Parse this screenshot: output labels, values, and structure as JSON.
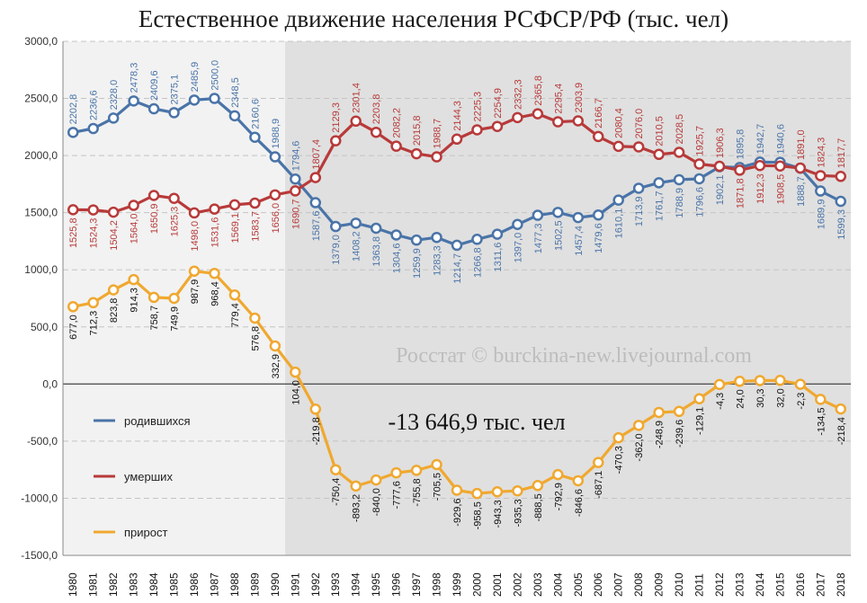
{
  "chart_data": {
    "type": "line",
    "title": "Естественное движение населения РСФСР/РФ (тыс. чел)",
    "x": [
      "1980",
      "1981",
      "1982",
      "1983",
      "1984",
      "1985",
      "1986",
      "1987",
      "1988",
      "1989",
      "1990",
      "1991",
      "1992",
      "1993",
      "1994",
      "1995",
      "1996",
      "1997",
      "1998",
      "1999",
      "2000",
      "2001",
      "2002",
      "2003",
      "2004",
      "2005",
      "2006",
      "2007",
      "2008",
      "2009",
      "2010",
      "2011",
      "2012",
      "2013",
      "2014",
      "2015",
      "2016",
      "2017",
      "2018"
    ],
    "y_ticks": [
      "3000,0",
      "2500,0",
      "2000,0",
      "1500,0",
      "1000,0",
      "500,0",
      "0,0",
      "-500,0",
      "-1000,0",
      "-1500,0"
    ],
    "ylim": [
      -1500,
      3000
    ],
    "grid": true,
    "shaded_from": "1991",
    "legend_position": "left",
    "series": [
      {
        "name": "родившихся",
        "color": "#4a74a8",
        "values": [
          2202.8,
          2236.6,
          2328.0,
          2478.3,
          2409.6,
          2375.1,
          2485.9,
          2500.0,
          2348.5,
          2160.6,
          1988.9,
          1794.6,
          1587.6,
          1379.0,
          1408.2,
          1363.8,
          1304.6,
          1259.9,
          1283.3,
          1214.7,
          1266.8,
          1311.6,
          1397.0,
          1477.3,
          1502.5,
          1457.4,
          1479.6,
          1610.1,
          1713.9,
          1761.7,
          1788.9,
          1796.6,
          1902.1,
          1895.8,
          1942.7,
          1940.6,
          1888.7,
          1689.9,
          1599.3
        ],
        "labels": [
          "2202,8",
          "2236,6",
          "2328,0",
          "2478,3",
          "2409,6",
          "2375,1",
          "2485,9",
          "2500,0",
          "2348,5",
          "2160,6",
          "1988,9",
          "1794,6",
          "1587,6",
          "1379,0",
          "1408,2",
          "1363,8",
          "1304,6",
          "1259,9",
          "1283,3",
          "1214,7",
          "1266,8",
          "1311,6",
          "1397,0",
          "1477,3",
          "1502,5",
          "1457,4",
          "1479,6",
          "1610,1",
          "1713,9",
          "1761,7",
          "1788,9",
          "1796,6",
          "1902,1",
          "1895,8",
          "1942,7",
          "1940,6",
          "1888,7",
          "1689,9",
          "1599,3"
        ]
      },
      {
        "name": "умерших",
        "color": "#b83a3a",
        "values": [
          1525.8,
          1524.3,
          1504.2,
          1564.0,
          1650.9,
          1625.3,
          1498.0,
          1531.6,
          1569.1,
          1583.7,
          1656.0,
          1690.7,
          1807.4,
          2129.3,
          2301.4,
          2203.8,
          2082.2,
          2015.8,
          1988.7,
          2144.3,
          2225.3,
          2254.9,
          2332.3,
          2365.8,
          2295.4,
          2303.9,
          2166.7,
          2080.4,
          2076.0,
          2010.5,
          2028.5,
          1925.7,
          1906.3,
          1871.8,
          1912.3,
          1908.5,
          1891.0,
          1824.3,
          1817.7
        ],
        "labels": [
          "1525,8",
          "1524,3",
          "1504,2",
          "1564,0",
          "1650,9",
          "1625,3",
          "1498,0",
          "1531,6",
          "1569,1",
          "1583,7",
          "1656,0",
          "1690,7",
          "1807,4",
          "2129,3",
          "2301,4",
          "2203,8",
          "2082,2",
          "2015,8",
          "1988,7",
          "2144,3",
          "2225,3",
          "2254,9",
          "2332,3",
          "2365,8",
          "2295,4",
          "2303,9",
          "2166,7",
          "2080,4",
          "2076,0",
          "2010,5",
          "2028,5",
          "1925,7",
          "1906,3",
          "1871,8",
          "1912,3",
          "1908,5",
          "1891,0",
          "1824,3",
          "1817,7"
        ]
      },
      {
        "name": "прирост",
        "color": "#f0a830",
        "values": [
          677.0,
          712.3,
          823.8,
          914.3,
          758.7,
          749.9,
          987.9,
          968.4,
          779.4,
          576.8,
          332.9,
          104.0,
          -219.8,
          -750.4,
          -893.2,
          -840.0,
          -777.6,
          -755.8,
          -705.5,
          -929.6,
          -958.5,
          -943.3,
          -935.3,
          -888.5,
          -792.9,
          -846.6,
          -687.1,
          -470.3,
          -362.0,
          -248.9,
          -239.6,
          -129.1,
          -4.3,
          24.0,
          30.3,
          32.0,
          -2.3,
          -134.5,
          -218.4
        ],
        "labels": [
          "677,0",
          "712,3",
          "823,8",
          "914,3",
          "758,7",
          "749,9",
          "987,9",
          "968,4",
          "779,4",
          "576,8",
          "332,9",
          "104,0",
          "-219,8",
          "-750,4",
          "-893,2",
          "-840,0",
          "-777,6",
          "-755,8",
          "-705,5",
          "-929,6",
          "-958,5",
          "-943,3",
          "-935,3",
          "-888,5",
          "-792,9",
          "-846,6",
          "-687,1",
          "-470,3",
          "-362,0",
          "-248,9",
          "-239,6",
          "-129,1",
          "-4,3",
          "24,0",
          "30,3",
          "32,0",
          "-2,3",
          "-134,5",
          "-218,4"
        ]
      }
    ],
    "annotations": {
      "total": "-13 646,9 тыс. чел",
      "watermark": "Росстат © burckina-new.livejournal.com"
    }
  }
}
